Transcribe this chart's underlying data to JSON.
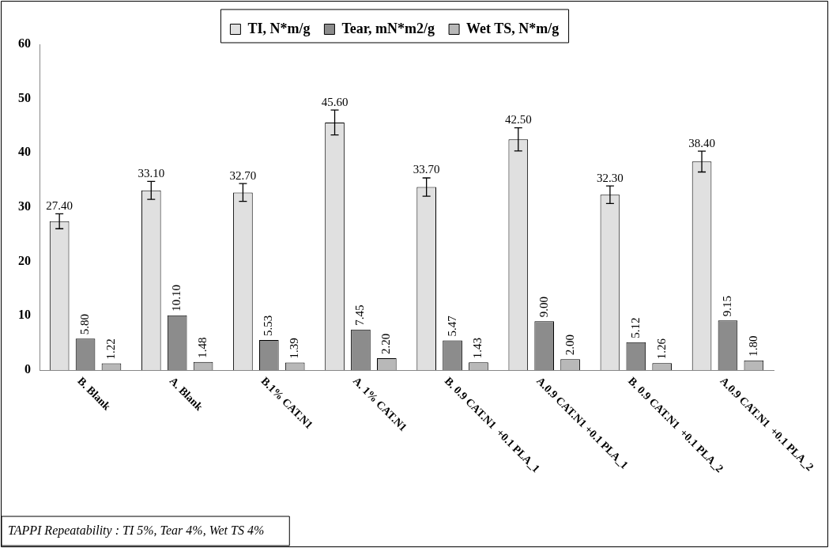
{
  "chart_data": {
    "type": "bar",
    "categories": [
      "B. Blank",
      "A. Blank",
      "B.1% CAT.N1",
      "A. 1% CAT.N1",
      "B. 0.9 CAT.N1  +0.1 PLA_1",
      "A.0.9 CAT.N1 +0.1 PLA_1",
      "B. 0.9 CAT.N1  +0.1 PLA_2",
      "A.0.9 CAT.N1  +0.1 PLA_2"
    ],
    "series": [
      {
        "name": "TI, N*m/g",
        "color": "#e0e0e0",
        "values": [
          27.4,
          33.1,
          32.7,
          45.6,
          33.7,
          42.5,
          32.3,
          38.4
        ],
        "errors": [
          1.37,
          1.66,
          1.64,
          2.28,
          1.69,
          2.13,
          1.62,
          1.92
        ],
        "value_labels": [
          "27.40",
          "33.10",
          "32.70",
          "45.60",
          "33.70",
          "42.50",
          "32.30",
          "38.40"
        ]
      },
      {
        "name": "Tear, mN*m2/g",
        "color": "#8c8c8c",
        "values": [
          5.8,
          10.1,
          5.53,
          7.45,
          5.47,
          9.0,
          5.12,
          9.15
        ],
        "value_labels": [
          "5.80",
          "10.10",
          "5.53",
          "7.45",
          "5.47",
          "9.00",
          "5.12",
          "9.15"
        ]
      },
      {
        "name": "Wet TS, N*m/g",
        "color": "#b8b8b8",
        "values": [
          1.22,
          1.48,
          1.39,
          2.2,
          1.43,
          2.0,
          1.26,
          1.8
        ],
        "value_labels": [
          "1.22",
          "1.48",
          "1.39",
          "2.20",
          "1.43",
          "2.00",
          "1.26",
          "1.80"
        ]
      }
    ],
    "ylim": [
      0,
      60
    ],
    "yticks": [
      0,
      10,
      20,
      30,
      40,
      50,
      60
    ],
    "grid": false,
    "legend": "top",
    "annotations": [
      "TAPPI Repeatability : TI 5%, Tear 4%, Wet TS 4%"
    ]
  }
}
